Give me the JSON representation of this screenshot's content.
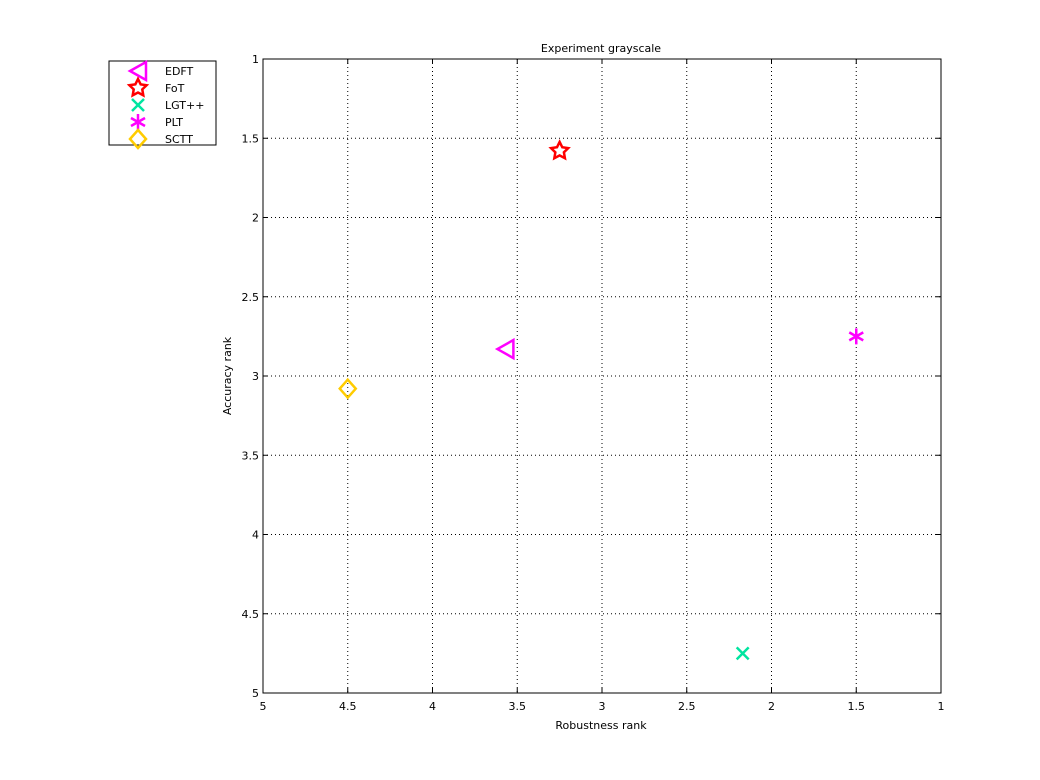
{
  "chart_data": {
    "type": "scatter",
    "title": "Experiment grayscale",
    "xlabel": "Robustness rank",
    "ylabel": "Accuracy rank",
    "xlim": [
      5,
      1
    ],
    "ylim": [
      1,
      5
    ],
    "x_reversed": true,
    "y_reversed": true,
    "grid": true,
    "legend_position": "outside-top-left",
    "xticks": [
      5,
      4.5,
      4,
      3.5,
      3,
      2.5,
      2,
      1.5,
      1
    ],
    "yticks": [
      1,
      1.5,
      2,
      2.5,
      3,
      3.5,
      4,
      4.5,
      5
    ],
    "series": [
      {
        "name": "EDFT",
        "marker": "triangle-left",
        "color": "#ff00ff",
        "x": 3.57,
        "y": 2.83
      },
      {
        "name": "FoT",
        "marker": "pentagram",
        "color": "#ff0000",
        "x": 3.25,
        "y": 1.58
      },
      {
        "name": "LGT++",
        "marker": "x",
        "color": "#00e5a0",
        "x": 2.17,
        "y": 4.75
      },
      {
        "name": "PLT",
        "marker": "asterisk",
        "color": "#ff00ff",
        "x": 1.5,
        "y": 2.75
      },
      {
        "name": "SCTT",
        "marker": "diamond",
        "color": "#ffcc00",
        "x": 4.5,
        "y": 3.08
      }
    ]
  }
}
